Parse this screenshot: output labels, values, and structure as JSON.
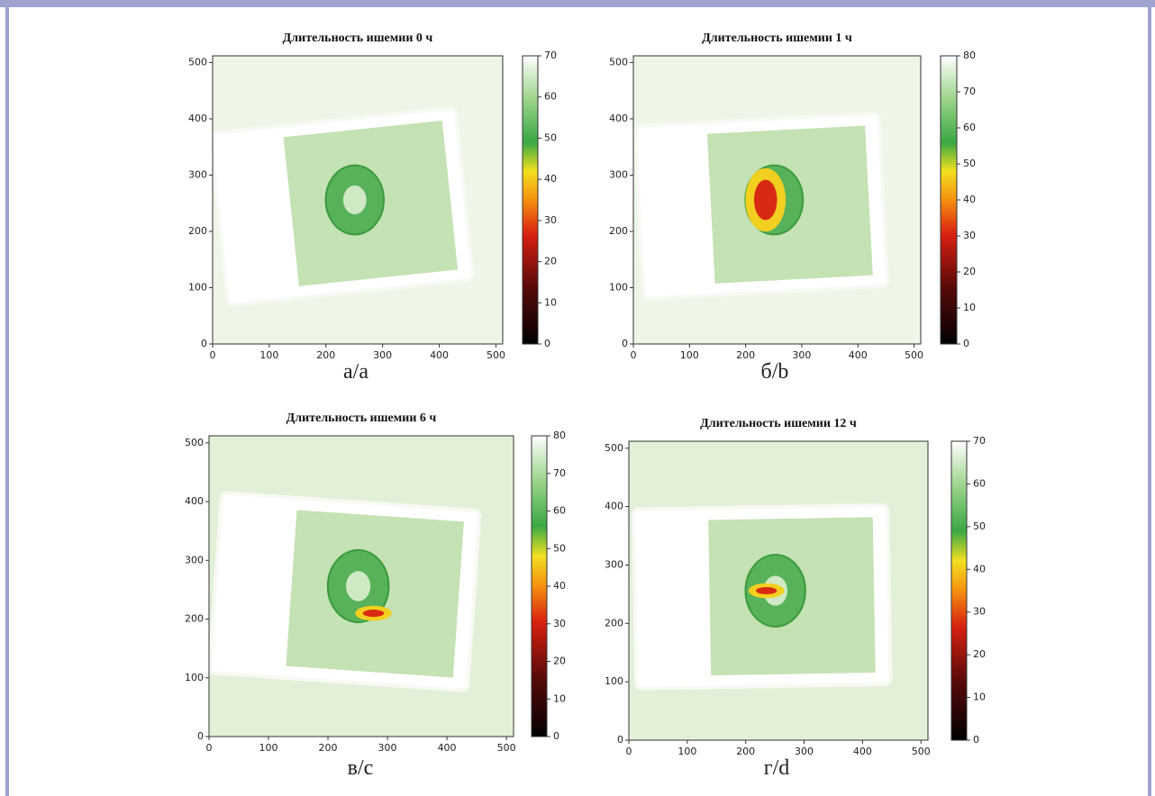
{
  "chart_data": [
    {
      "type": "image",
      "title": "Длительность ишемии 0 ч",
      "caption": "а/a",
      "xlim": [
        0,
        512
      ],
      "ylim": [
        0,
        512
      ],
      "xticks": [
        0,
        100,
        200,
        300,
        400,
        500
      ],
      "yticks": [
        0,
        100,
        200,
        300,
        400,
        500
      ],
      "colorbar_lim": [
        0,
        70
      ],
      "colorbar_ticks": [
        0,
        10,
        20,
        30,
        40,
        50,
        60,
        70
      ]
    },
    {
      "type": "image",
      "title": "Длительность ишемии 1 ч",
      "caption": "б/b",
      "xlim": [
        0,
        512
      ],
      "ylim": [
        0,
        512
      ],
      "xticks": [
        0,
        100,
        200,
        300,
        400,
        500
      ],
      "yticks": [
        0,
        100,
        200,
        300,
        400,
        500
      ],
      "colorbar_lim": [
        0,
        80
      ],
      "colorbar_ticks": [
        0,
        10,
        20,
        30,
        40,
        50,
        60,
        70,
        80
      ]
    },
    {
      "type": "image",
      "title": "Длительность ишемии 6 ч",
      "caption": "в/c",
      "xlim": [
        0,
        512
      ],
      "ylim": [
        0,
        512
      ],
      "xticks": [
        0,
        100,
        200,
        300,
        400,
        500
      ],
      "yticks": [
        0,
        100,
        200,
        300,
        400,
        500
      ],
      "colorbar_lim": [
        0,
        80
      ],
      "colorbar_ticks": [
        0,
        10,
        20,
        30,
        40,
        50,
        60,
        70,
        80
      ]
    },
    {
      "type": "image",
      "title": "Длительность ишемии 12 ч",
      "caption": "г/d",
      "xlim": [
        0,
        512
      ],
      "ylim": [
        0,
        512
      ],
      "xticks": [
        0,
        100,
        200,
        300,
        400,
        500
      ],
      "yticks": [
        0,
        100,
        200,
        300,
        400,
        500
      ],
      "colorbar_lim": [
        0,
        70
      ],
      "colorbar_ticks": [
        0,
        10,
        20,
        30,
        40,
        50,
        60,
        70
      ]
    }
  ]
}
